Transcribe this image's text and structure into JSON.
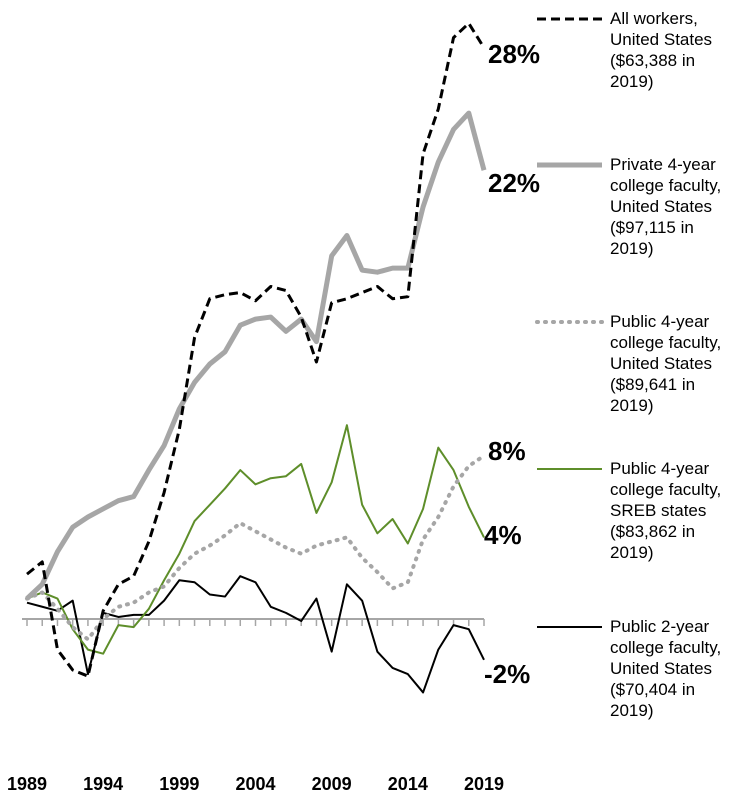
{
  "chart_data": {
    "type": "line",
    "x": [
      1989,
      1990,
      1991,
      1992,
      1993,
      1994,
      1995,
      1996,
      1997,
      1998,
      1999,
      2000,
      2001,
      2002,
      2003,
      2004,
      2005,
      2006,
      2007,
      2008,
      2009,
      2010,
      2011,
      2012,
      2013,
      2014,
      2015,
      2016,
      2017,
      2018,
      2019
    ],
    "xticks": [
      "1989",
      "1994",
      "1999",
      "2004",
      "2009",
      "2014",
      "2019"
    ],
    "ylim": [
      -5,
      32
    ],
    "grid": false,
    "legend_position": "right",
    "series": [
      {
        "name": "All workers, United States ($63,388 in 2019)",
        "color": "#000000",
        "dash": "dashed",
        "end_label": "28%",
        "values": [
          2.2,
          2.8,
          -1.5,
          -2.5,
          -2.8,
          0.4,
          1.7,
          2.1,
          3.8,
          6.2,
          9.3,
          13.8,
          15.7,
          15.9,
          16.0,
          15.6,
          16.3,
          16.1,
          14.8,
          12.6,
          15.5,
          15.7,
          16.0,
          16.3,
          15.7,
          15.8,
          22.8,
          25.0,
          28.5,
          29.2,
          28.0
        ]
      },
      {
        "name": "Private 4-year college faculty, United States ($97,115 in 2019)",
        "color": "#a6a6a6",
        "dash": "solid",
        "end_label": "22%",
        "values": [
          1.0,
          1.7,
          3.3,
          4.5,
          5.0,
          5.4,
          5.8,
          6.0,
          7.3,
          8.5,
          10.3,
          11.6,
          12.5,
          13.1,
          14.4,
          14.7,
          14.8,
          14.1,
          14.7,
          13.6,
          17.8,
          18.8,
          17.1,
          17.0,
          17.2,
          17.2,
          20.2,
          22.4,
          24.0,
          24.8,
          22.0
        ]
      },
      {
        "name": "Public 4-year college faculty, United States ($89,641 in 2019)",
        "color": "#a6a6a6",
        "dash": "dotted",
        "end_label": "8%",
        "values": [
          1.0,
          1.3,
          0.5,
          -0.4,
          -1.0,
          0.0,
          0.6,
          0.8,
          1.3,
          1.6,
          2.5,
          3.2,
          3.6,
          4.1,
          4.7,
          4.3,
          3.9,
          3.5,
          3.2,
          3.6,
          3.8,
          4.0,
          3.0,
          2.3,
          1.5,
          1.8,
          3.9,
          5.0,
          6.5,
          7.5,
          8.0
        ]
      },
      {
        "name": "Public 4-year college faculty, SREB states ($83,862 in 2019)",
        "color": "#5e8e2a",
        "dash": "solid",
        "end_label": "4%",
        "values": [
          1.0,
          1.3,
          1.0,
          -0.5,
          -1.5,
          -1.7,
          -0.3,
          -0.4,
          0.5,
          1.9,
          3.2,
          4.8,
          5.6,
          6.4,
          7.3,
          6.6,
          6.9,
          7.0,
          7.6,
          5.2,
          6.7,
          9.5,
          5.6,
          4.2,
          4.9,
          3.7,
          5.4,
          8.4,
          7.3,
          5.5,
          4.0
        ]
      },
      {
        "name": "Public 2-year college faculty, United States ($70,404 in 2019)",
        "color": "#000000",
        "dash": "solid",
        "end_label": "-2%",
        "values": [
          0.8,
          0.6,
          0.4,
          0.9,
          -2.7,
          0.3,
          0.1,
          0.2,
          0.2,
          0.9,
          1.9,
          1.8,
          1.2,
          1.1,
          2.1,
          1.8,
          0.6,
          0.3,
          -0.1,
          1.0,
          -1.6,
          1.7,
          0.9,
          -1.6,
          -2.4,
          -2.7,
          -3.6,
          -1.5,
          -0.3,
          -0.5,
          -2.0
        ]
      }
    ]
  }
}
